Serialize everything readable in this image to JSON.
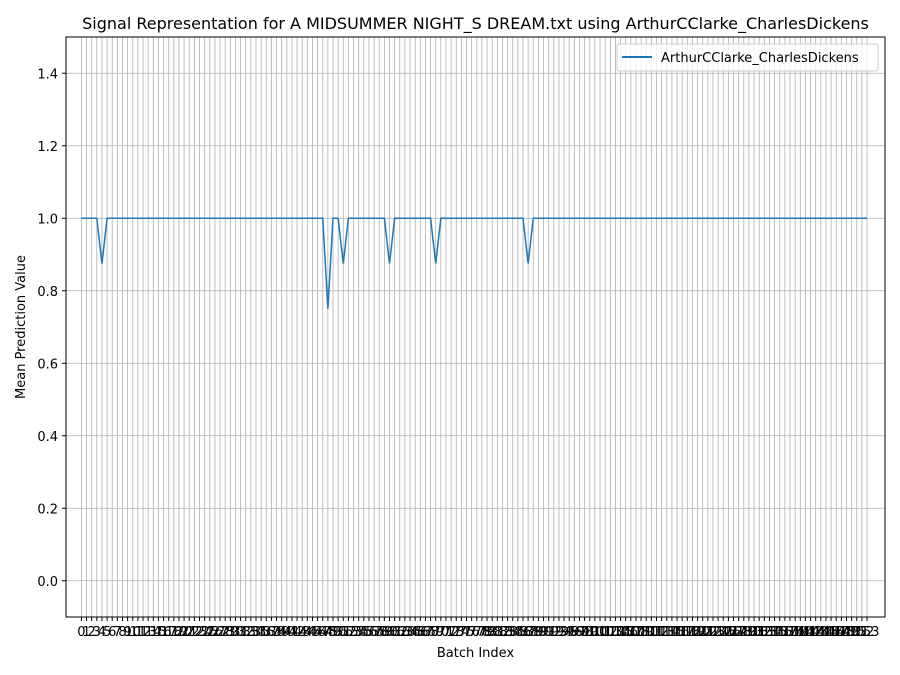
{
  "chart_data": {
    "type": "line",
    "title": "Signal Representation for A MIDSUMMER NIGHT_S DREAM.txt using ArthurCClarke_CharlesDickens",
    "xlabel": "Batch Index",
    "ylabel": "Mean Prediction Value",
    "xlim": [
      -3,
      156.5
    ],
    "ylim": [
      -0.1,
      1.5
    ],
    "x_ticks": {
      "start": 0,
      "end": 153,
      "step": 1
    },
    "y_ticks": [
      0.0,
      0.2,
      0.4,
      0.6,
      0.8,
      1.0,
      1.2,
      1.4
    ],
    "y_tick_labels": [
      "0.0",
      "0.2",
      "0.4",
      "0.6",
      "0.8",
      "1.0",
      "1.2",
      "1.4"
    ],
    "grid": true,
    "legend_position": "top-right",
    "series": [
      {
        "name": "ArthurCClarke_CharlesDickens",
        "color": "#1f77b4",
        "default_value": 1.0,
        "x_range": [
          0,
          153
        ],
        "dips": [
          {
            "x": 4,
            "y": 0.875
          },
          {
            "x": 48,
            "y": 0.75
          },
          {
            "x": 51,
            "y": 0.875
          },
          {
            "x": 60,
            "y": 0.875
          },
          {
            "x": 69,
            "y": 0.875
          },
          {
            "x": 87,
            "y": 0.875
          }
        ]
      }
    ]
  }
}
